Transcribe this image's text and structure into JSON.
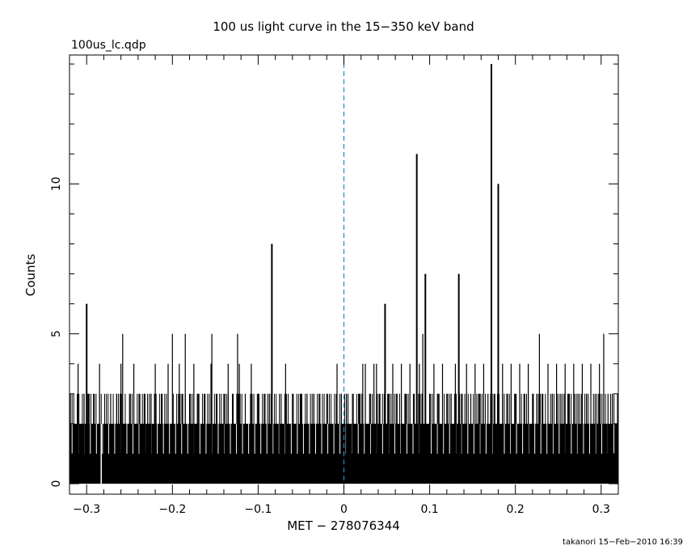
{
  "chart_data": {
    "type": "bar",
    "title": "100 us light curve in the 15−350 keV band",
    "file_label": "100us_lc.qdp",
    "xlabel": "MET − 278076344",
    "ylabel": "Counts",
    "footer": "takanori 15−Feb−2010 16:39",
    "xlim": [
      -0.32,
      0.32
    ],
    "ylim": [
      -0.35,
      14.3
    ],
    "x_ticks": [
      -0.3,
      -0.2,
      -0.1,
      0,
      0.1,
      0.2,
      0.3
    ],
    "x_tick_labels": [
      "−0.3",
      "−0.2",
      "−0.1",
      "0",
      "0.1",
      "0.2",
      "0.3"
    ],
    "y_ticks": [
      0,
      5,
      10
    ],
    "y_tick_labels": [
      "0",
      "5",
      "10"
    ],
    "bin_width": 0.0001,
    "series": [
      {
        "baseline_counts": 2,
        "peaks": [
          {
            "x": -0.303,
            "y": 3
          },
          {
            "x": -0.3,
            "y": 6
          },
          {
            "x": -0.298,
            "y": 3
          },
          {
            "x": -0.31,
            "y": 4
          },
          {
            "x": -0.292,
            "y": 3
          },
          {
            "x": -0.285,
            "y": 4
          },
          {
            "x": -0.272,
            "y": 3
          },
          {
            "x": -0.265,
            "y": 3
          },
          {
            "x": -0.26,
            "y": 4
          },
          {
            "x": -0.258,
            "y": 5
          },
          {
            "x": -0.25,
            "y": 3
          },
          {
            "x": -0.245,
            "y": 4
          },
          {
            "x": -0.238,
            "y": 3
          },
          {
            "x": -0.232,
            "y": 3
          },
          {
            "x": -0.225,
            "y": 3
          },
          {
            "x": -0.22,
            "y": 4
          },
          {
            "x": -0.212,
            "y": 3
          },
          {
            "x": -0.205,
            "y": 4
          },
          {
            "x": -0.2,
            "y": 5
          },
          {
            "x": -0.192,
            "y": 4
          },
          {
            "x": -0.188,
            "y": 3
          },
          {
            "x": -0.185,
            "y": 5
          },
          {
            "x": -0.18,
            "y": 3
          },
          {
            "x": -0.175,
            "y": 4
          },
          {
            "x": -0.17,
            "y": 3
          },
          {
            "x": -0.162,
            "y": 3
          },
          {
            "x": -0.155,
            "y": 4
          },
          {
            "x": -0.154,
            "y": 5
          },
          {
            "x": -0.148,
            "y": 3
          },
          {
            "x": -0.14,
            "y": 3
          },
          {
            "x": -0.135,
            "y": 4
          },
          {
            "x": -0.13,
            "y": 3
          },
          {
            "x": -0.124,
            "y": 5
          },
          {
            "x": -0.122,
            "y": 4
          },
          {
            "x": -0.115,
            "y": 3
          },
          {
            "x": -0.108,
            "y": 4
          },
          {
            "x": -0.1,
            "y": 3
          },
          {
            "x": -0.092,
            "y": 3
          },
          {
            "x": -0.087,
            "y": 3
          },
          {
            "x": -0.084,
            "y": 8
          },
          {
            "x": -0.075,
            "y": 3
          },
          {
            "x": -0.068,
            "y": 4
          },
          {
            "x": -0.06,
            "y": 3
          },
          {
            "x": -0.05,
            "y": 3
          },
          {
            "x": -0.043,
            "y": 3
          },
          {
            "x": -0.035,
            "y": 3
          },
          {
            "x": -0.028,
            "y": 3
          },
          {
            "x": -0.02,
            "y": 3
          },
          {
            "x": -0.008,
            "y": 4
          },
          {
            "x": -0.003,
            "y": 3
          },
          {
            "x": 0.003,
            "y": 3
          },
          {
            "x": 0.01,
            "y": 3
          },
          {
            "x": 0.018,
            "y": 3
          },
          {
            "x": 0.022,
            "y": 4
          },
          {
            "x": 0.025,
            "y": 4
          },
          {
            "x": 0.03,
            "y": 3
          },
          {
            "x": 0.035,
            "y": 4
          },
          {
            "x": 0.038,
            "y": 4
          },
          {
            "x": 0.042,
            "y": 3
          },
          {
            "x": 0.048,
            "y": 6
          },
          {
            "x": 0.052,
            "y": 3
          },
          {
            "x": 0.057,
            "y": 4
          },
          {
            "x": 0.062,
            "y": 3
          },
          {
            "x": 0.067,
            "y": 4
          },
          {
            "x": 0.072,
            "y": 3
          },
          {
            "x": 0.077,
            "y": 4
          },
          {
            "x": 0.082,
            "y": 3
          },
          {
            "x": 0.085,
            "y": 11
          },
          {
            "x": 0.088,
            "y": 4
          },
          {
            "x": 0.092,
            "y": 5
          },
          {
            "x": 0.095,
            "y": 7
          },
          {
            "x": 0.1,
            "y": 3
          },
          {
            "x": 0.105,
            "y": 4
          },
          {
            "x": 0.11,
            "y": 3
          },
          {
            "x": 0.115,
            "y": 4
          },
          {
            "x": 0.12,
            "y": 3
          },
          {
            "x": 0.125,
            "y": 3
          },
          {
            "x": 0.13,
            "y": 4
          },
          {
            "x": 0.134,
            "y": 7
          },
          {
            "x": 0.138,
            "y": 3
          },
          {
            "x": 0.143,
            "y": 4
          },
          {
            "x": 0.148,
            "y": 3
          },
          {
            "x": 0.153,
            "y": 4
          },
          {
            "x": 0.158,
            "y": 3
          },
          {
            "x": 0.163,
            "y": 4
          },
          {
            "x": 0.168,
            "y": 3
          },
          {
            "x": 0.172,
            "y": 14
          },
          {
            "x": 0.176,
            "y": 3
          },
          {
            "x": 0.18,
            "y": 10
          },
          {
            "x": 0.185,
            "y": 4
          },
          {
            "x": 0.19,
            "y": 3
          },
          {
            "x": 0.195,
            "y": 4
          },
          {
            "x": 0.2,
            "y": 3
          },
          {
            "x": 0.205,
            "y": 4
          },
          {
            "x": 0.21,
            "y": 3
          },
          {
            "x": 0.215,
            "y": 4
          },
          {
            "x": 0.22,
            "y": 3
          },
          {
            "x": 0.225,
            "y": 3
          },
          {
            "x": 0.228,
            "y": 5
          },
          {
            "x": 0.232,
            "y": 3
          },
          {
            "x": 0.238,
            "y": 4
          },
          {
            "x": 0.243,
            "y": 3
          },
          {
            "x": 0.248,
            "y": 4
          },
          {
            "x": 0.253,
            "y": 3
          },
          {
            "x": 0.258,
            "y": 4
          },
          {
            "x": 0.262,
            "y": 3
          },
          {
            "x": 0.268,
            "y": 4
          },
          {
            "x": 0.273,
            "y": 3
          },
          {
            "x": 0.278,
            "y": 4
          },
          {
            "x": 0.283,
            "y": 3
          },
          {
            "x": 0.288,
            "y": 4
          },
          {
            "x": 0.293,
            "y": 3
          },
          {
            "x": 0.298,
            "y": 4
          },
          {
            "x": 0.303,
            "y": 5
          },
          {
            "x": 0.308,
            "y": 3
          },
          {
            "x": 0.313,
            "y": 3
          }
        ],
        "zero_bins": [
          -0.283
        ]
      }
    ],
    "reference_line": {
      "x": 0,
      "color": "#1e90b4",
      "style": "dashed"
    },
    "bar_color": "#000000",
    "grid": false,
    "legend": "none"
  }
}
